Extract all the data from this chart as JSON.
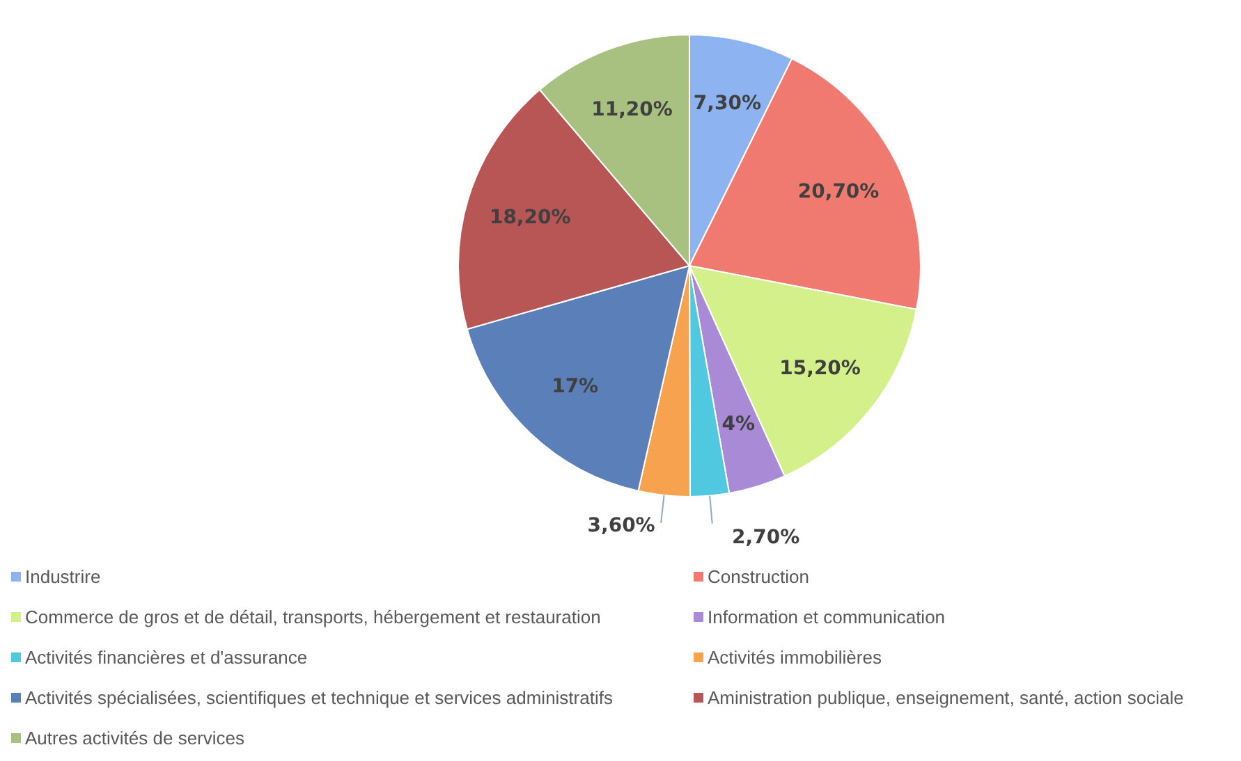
{
  "chart_data": {
    "type": "pie",
    "categories": [
      "Industrire",
      "Construction",
      "Commerce de gros et de détail, transports, hébergement et restauration",
      "Information et communication",
      "Activités financières et d'assurance",
      "Activités immobilières",
      "Activités spécialisées, scientifiques et technique et services administratifs",
      "Aministration publique, enseignement, santé, action sociale",
      "Autres activités de services"
    ],
    "values": [
      7.3,
      20.7,
      15.2,
      4,
      2.7,
      3.6,
      17,
      18.2,
      11.2
    ],
    "value_labels": [
      "7,30%",
      "20,70%",
      "15,20%",
      "4%",
      "2,70%",
      "3,60%",
      "17%",
      "18,20%",
      "11,20%"
    ],
    "colors": [
      "#8db4f0",
      "#f07a70",
      "#d4f08a",
      "#a98ad6",
      "#4fc8e0",
      "#f7a24f",
      "#5b7fb8",
      "#b85555",
      "#a8c080"
    ],
    "legend": "bottom"
  }
}
